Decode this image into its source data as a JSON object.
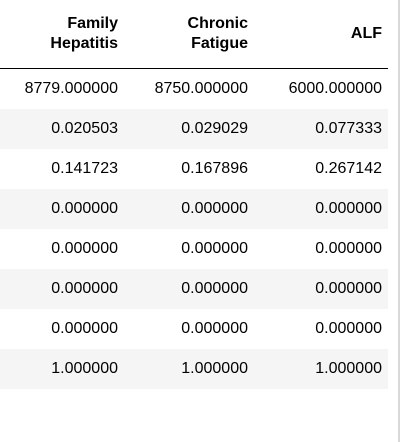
{
  "table": {
    "columns": [
      "Family\nHepatitis",
      "Chronic\nFatigue",
      "ALF"
    ],
    "rows": [
      [
        "8779.000000",
        "8750.000000",
        "6000.000000"
      ],
      [
        "0.020503",
        "0.029029",
        "0.077333"
      ],
      [
        "0.141723",
        "0.167896",
        "0.267142"
      ],
      [
        "0.000000",
        "0.000000",
        "0.000000"
      ],
      [
        "0.000000",
        "0.000000",
        "0.000000"
      ],
      [
        "0.000000",
        "0.000000",
        "0.000000"
      ],
      [
        "0.000000",
        "0.000000",
        "0.000000"
      ],
      [
        "1.000000",
        "1.000000",
        "1.000000"
      ]
    ],
    "striped_row_color": "#f5f5f5",
    "header_rule_color": "#000000"
  }
}
